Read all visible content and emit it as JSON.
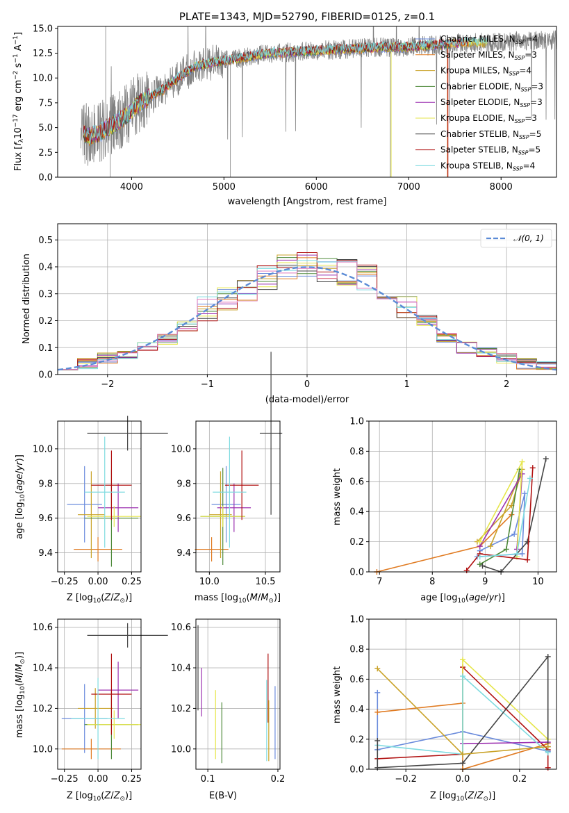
{
  "chart_data": [
    {
      "id": "spectrum",
      "type": "line",
      "title": "PLATE=1343, MJD=52790, FIBERID=0125, z=0.1",
      "xlabel": "wavelength [Angstrom, rest frame]",
      "ylabel": "Flux [f_λ 10^-17 erg cm^-2 s^-1 A^-1]",
      "ylabel_parts": {
        "a": "Flux [",
        "b": "f",
        "c": "λ",
        "d": "10",
        "e": "−17",
        "f": " erg cm",
        "g": "−2",
        "h": " s",
        "i": "−1",
        "j": " A",
        "k": "−1",
        "l": "]"
      },
      "xlim": [
        3200,
        8600
      ],
      "ylim": [
        0,
        15.2
      ],
      "xticks": [
        "4000",
        "5000",
        "6000",
        "7000",
        "8000"
      ],
      "yticks": [
        "0.0",
        "2.5",
        "5.0",
        "7.5",
        "10.0",
        "12.5",
        "15.0"
      ],
      "legend_position": "right",
      "series": [
        {
          "name": "Chabrier MILES, N_SSP=4",
          "color": "#6a8bdc"
        },
        {
          "name": "Salpeter MILES, N_SSP=3",
          "color": "#e07b22"
        },
        {
          "name": "Kroupa MILES, N_SSP=4",
          "color": "#c9a227"
        },
        {
          "name": "Chabrier ELODIE, N_SSP=3",
          "color": "#4e8a3a"
        },
        {
          "name": "Salpeter ELODIE, N_SSP=3",
          "color": "#9b30b0"
        },
        {
          "name": "Kroupa ELODIE, N_SSP=3",
          "color": "#e6e64a"
        },
        {
          "name": "Chabrier STELIB, N_SSP=5",
          "color": "#444444"
        },
        {
          "name": "Salpeter STELIB, N_SSP=5",
          "color": "#b01010"
        },
        {
          "name": "Kroupa STELIB, N_SSP=4",
          "color": "#7fdbe0"
        }
      ],
      "legend_labels": [
        {
          "base": "Chabrier MILES, N",
          "sub": "SSP",
          "tail": "=4"
        },
        {
          "base": "Salpeter MILES, N",
          "sub": "SSP",
          "tail": "=3"
        },
        {
          "base": "Kroupa MILES, N",
          "sub": "SSP",
          "tail": "=4"
        },
        {
          "base": "Chabrier ELODIE, N",
          "sub": "SSP",
          "tail": "=3"
        },
        {
          "base": "Salpeter ELODIE, N",
          "sub": "SSP",
          "tail": "=3"
        },
        {
          "base": "Kroupa ELODIE, N",
          "sub": "SSP",
          "tail": "=3"
        },
        {
          "base": "Chabrier STELIB, N",
          "sub": "SSP",
          "tail": "=5"
        },
        {
          "base": "Salpeter STELIB, N",
          "sub": "SSP",
          "tail": "=5"
        },
        {
          "base": "Kroupa STELIB, N",
          "sub": "SSP",
          "tail": "=4"
        }
      ],
      "data_color": "#808080",
      "continuum": {
        "x": [
          3480,
          3550,
          3650,
          3750,
          3850,
          3950,
          4050,
          4150,
          4250,
          4350,
          4500,
          4700,
          4900,
          5100,
          5300,
          5500,
          5700,
          5900,
          6100,
          6300,
          6500,
          6700,
          6900,
          7100,
          7300,
          7500
        ],
        "y": [
          4.5,
          4.1,
          4.4,
          5.0,
          5.6,
          6.2,
          7.2,
          7.9,
          8.3,
          8.9,
          10.0,
          11.2,
          11.6,
          11.9,
          12.2,
          12.5,
          12.6,
          12.7,
          12.8,
          12.9,
          13.0,
          13.1,
          13.1,
          13.2,
          13.3,
          13.5
        ]
      },
      "data_xrange": [
        3450,
        8600
      ]
    },
    {
      "id": "residuals",
      "type": "line",
      "xlabel": "(data-model)/error",
      "ylabel": "Normed distribution",
      "xlim": [
        -2.5,
        2.5
      ],
      "ylim": [
        0,
        0.56
      ],
      "xticks": [
        "−2",
        "−1",
        "0",
        "1",
        "2"
      ],
      "yticks": [
        "0.0",
        "0.1",
        "0.2",
        "0.3",
        "0.4",
        "0.5"
      ],
      "legend": "𝒩(0, 1)",
      "gaussian_color": "#5b8bd6",
      "hist_bins": [
        -2.5,
        -2.3,
        -2.1,
        -1.9,
        -1.7,
        -1.5,
        -1.3,
        -1.1,
        -0.9,
        -0.7,
        -0.5,
        -0.3,
        -0.1,
        0.1,
        0.3,
        0.5,
        0.7,
        0.9,
        1.1,
        1.3,
        1.5,
        1.7,
        1.9,
        2.1,
        2.3,
        2.5
      ],
      "hist_base": [
        0.02,
        0.04,
        0.06,
        0.08,
        0.1,
        0.13,
        0.18,
        0.24,
        0.28,
        0.32,
        0.36,
        0.4,
        0.41,
        0.39,
        0.38,
        0.36,
        0.31,
        0.25,
        0.2,
        0.14,
        0.1,
        0.08,
        0.06,
        0.04,
        0.03
      ]
    },
    {
      "id": "age_vs_Z",
      "type": "scatter",
      "xlabel": "Z [log10(Z/Z☉)]",
      "ylabel": "age [log10(age/yr)]",
      "xlim": [
        -0.3,
        0.32
      ],
      "ylim": [
        9.29,
        10.16
      ],
      "xticks": [
        "−0.25",
        "0.00",
        "0.25"
      ],
      "yticks": [
        "9.4",
        "9.6",
        "9.8",
        "10.0"
      ],
      "points": [
        {
          "series": 0,
          "x": -0.1,
          "y": 9.68,
          "xerr": 0.13,
          "yerr": 0.22
        },
        {
          "series": 1,
          "x": 0.0,
          "y": 9.42,
          "xerr": 0.18,
          "yerr": 0.07
        },
        {
          "series": 2,
          "x": -0.05,
          "y": 9.62,
          "xerr": 0.1,
          "yerr": 0.25
        },
        {
          "series": 3,
          "x": 0.1,
          "y": 9.6,
          "xerr": 0.2,
          "yerr": 0.28
        },
        {
          "series": 4,
          "x": 0.15,
          "y": 9.66,
          "xerr": 0.15,
          "yerr": 0.14
        },
        {
          "series": 5,
          "x": 0.12,
          "y": 9.61,
          "xerr": 0.2,
          "yerr": 0.06
        },
        {
          "series": 6,
          "x": 0.22,
          "y": 10.09,
          "xerr": 0.3,
          "yerr": 0.1
        },
        {
          "series": 7,
          "x": 0.1,
          "y": 9.79,
          "xerr": 0.15,
          "yerr": 0.2
        },
        {
          "series": 8,
          "x": 0.05,
          "y": 9.75,
          "xerr": 0.15,
          "yerr": 0.32
        }
      ]
    },
    {
      "id": "age_vs_mass",
      "type": "scatter",
      "xlabel": "mass [log10(M/M☉)]",
      "ylabel": "",
      "xlim": [
        9.88,
        10.63
      ],
      "ylim": [
        9.29,
        10.16
      ],
      "xticks": [
        "10.0",
        "10.5"
      ],
      "yticks": [
        "9.4",
        "9.6",
        "9.8",
        "10.0"
      ],
      "points": [
        {
          "series": 0,
          "x": 10.15,
          "y": 9.68,
          "xerr": 0.13,
          "yerr": 0.22
        },
        {
          "series": 1,
          "x": 10.02,
          "y": 9.42,
          "xerr": 0.15,
          "yerr": 0.07
        },
        {
          "series": 2,
          "x": 10.1,
          "y": 9.62,
          "xerr": 0.1,
          "yerr": 0.25
        },
        {
          "series": 3,
          "x": 10.12,
          "y": 9.61,
          "xerr": 0.2,
          "yerr": 0.28
        },
        {
          "series": 4,
          "x": 10.22,
          "y": 9.66,
          "xerr": 0.15,
          "yerr": 0.14
        },
        {
          "series": 5,
          "x": 10.12,
          "y": 9.61,
          "xerr": 0.2,
          "yerr": 0.06
        },
        {
          "series": 6,
          "x": 10.55,
          "y": 10.09,
          "xerr": 0.1,
          "yerr": 0.47
        },
        {
          "series": 7,
          "x": 10.29,
          "y": 9.79,
          "xerr": 0.15,
          "yerr": 0.2
        },
        {
          "series": 8,
          "x": 10.18,
          "y": 9.75,
          "xerr": 0.15,
          "yerr": 0.32
        }
      ]
    },
    {
      "id": "weight_vs_age",
      "type": "line",
      "xlabel": "age [log10(age/yr)]",
      "ylabel": "mass weight",
      "xlim": [
        6.8,
        10.35
      ],
      "ylim": [
        0,
        1
      ],
      "xticks": [
        "7",
        "8",
        "9",
        "10"
      ],
      "yticks": [
        "0.0",
        "0.2",
        "0.4",
        "0.6",
        "0.8",
        "1.0"
      ],
      "series": [
        {
          "series": 0,
          "x": [
            8.85,
            9.7,
            9.75,
            9.55,
            8.9
          ],
          "y": [
            0.1,
            0.12,
            0.52,
            0.25,
            0.14
          ]
        },
        {
          "series": 1,
          "x": [
            6.95,
            8.9,
            9.5
          ],
          "y": [
            0.0,
            0.17,
            0.38
          ]
        },
        {
          "series": 2,
          "x": [
            8.85,
            9.5,
            9.7,
            9.1
          ],
          "y": [
            0.2,
            0.44,
            0.68,
            0.17
          ]
        },
        {
          "series": 3,
          "x": [
            8.9,
            9.4,
            9.65
          ],
          "y": [
            0.05,
            0.15,
            0.68
          ]
        },
        {
          "series": 4,
          "x": [
            8.9,
            9.7,
            9.6
          ],
          "y": [
            0.17,
            0.65,
            0.15
          ]
        },
        {
          "series": 5,
          "x": [
            8.9,
            9.7,
            9.6
          ],
          "y": [
            0.2,
            0.73,
            0.1
          ]
        },
        {
          "series": 6,
          "x": [
            8.95,
            9.3,
            9.8,
            10.15
          ],
          "y": [
            0.04,
            0.0,
            0.2,
            0.75
          ]
        },
        {
          "series": 7,
          "x": [
            8.65,
            8.9,
            9.8,
            9.9
          ],
          "y": [
            0.01,
            0.12,
            0.08,
            0.69
          ]
        },
        {
          "series": 8,
          "x": [
            8.9,
            9.6,
            9.85
          ],
          "y": [
            0.1,
            0.12,
            0.62
          ]
        }
      ]
    },
    {
      "id": "mass_vs_Z",
      "type": "scatter",
      "xlabel": "Z [log10(Z/Z☉)]",
      "ylabel": "mass [log10(M/M☉)]",
      "xlim": [
        -0.3,
        0.32
      ],
      "ylim": [
        9.9,
        10.64
      ],
      "xticks": [
        "−0.25",
        "0.00",
        "0.25"
      ],
      "yticks": [
        "10.0",
        "10.2",
        "10.4",
        "10.6"
      ],
      "points": [
        {
          "series": 0,
          "x": -0.1,
          "y": 10.15,
          "xerr": 0.17,
          "yerr": 0.17
        },
        {
          "series": 1,
          "x": -0.05,
          "y": 10.0,
          "xerr": 0.22,
          "yerr": 0.05
        },
        {
          "series": 2,
          "x": -0.02,
          "y": 10.2,
          "xerr": 0.13,
          "yerr": 0.1
        },
        {
          "series": 3,
          "x": 0.1,
          "y": 10.12,
          "xerr": 0.2,
          "yerr": 0.17
        },
        {
          "series": 4,
          "x": 0.15,
          "y": 10.29,
          "xerr": 0.15,
          "yerr": 0.14
        },
        {
          "series": 5,
          "x": 0.12,
          "y": 10.12,
          "xerr": 0.2,
          "yerr": 0.07
        },
        {
          "series": 6,
          "x": 0.22,
          "y": 10.56,
          "xerr": 0.3,
          "yerr": 0.06
        },
        {
          "series": 7,
          "x": 0.1,
          "y": 10.27,
          "xerr": 0.15,
          "yerr": 0.2
        },
        {
          "series": 8,
          "x": 0.0,
          "y": 10.15,
          "xerr": 0.2,
          "yerr": 0.2
        }
      ]
    },
    {
      "id": "mass_vs_ebv",
      "type": "scatter",
      "xlabel": "E(B-V)",
      "ylabel": "",
      "xlim": [
        0.083,
        0.203
      ],
      "ylim": [
        9.9,
        10.64
      ],
      "xticks": [
        "0.1",
        "0.2"
      ],
      "yticks": [
        "10.0",
        "10.2",
        "10.4",
        "10.6"
      ],
      "points": [
        {
          "series": 6,
          "x": 0.086,
          "y": 10.4,
          "yerr": 0.21
        },
        {
          "series": 4,
          "x": 0.091,
          "y": 10.28,
          "yerr": 0.12
        },
        {
          "series": 5,
          "x": 0.111,
          "y": 10.12,
          "yerr": 0.17
        },
        {
          "series": 3,
          "x": 0.12,
          "y": 10.08,
          "yerr": 0.15
        },
        {
          "series": 8,
          "x": 0.184,
          "y": 10.14,
          "yerr": 0.2
        },
        {
          "series": 7,
          "x": 0.186,
          "y": 10.3,
          "yerr": 0.17
        },
        {
          "series": 2,
          "x": 0.187,
          "y": 10.09,
          "yerr": 0.15
        },
        {
          "series": 0,
          "x": 0.196,
          "y": 10.13,
          "yerr": 0.18
        }
      ]
    },
    {
      "id": "weight_vs_Z",
      "type": "line",
      "xlabel": "Z [log10(Z/Z☉)]",
      "ylabel": "mass weight",
      "xlim": [
        -0.33,
        0.33
      ],
      "ylim": [
        0,
        1
      ],
      "xticks": [
        "−0.2",
        "0.0",
        "0.2"
      ],
      "yticks": [
        "0.0",
        "0.2",
        "0.4",
        "0.6",
        "0.8",
        "1.0"
      ],
      "series": [
        {
          "series": 0,
          "x": [
            -0.3,
            -0.3,
            -0.3,
            0.0,
            0.3,
            0.3
          ],
          "y": [
            0.51,
            0.13,
            0.13,
            0.25,
            0.12,
            0.12
          ]
        },
        {
          "series": 1,
          "x": [
            -0.3,
            0.0,
            0.0,
            0.3
          ],
          "y": [
            0.38,
            0.44,
            0.0,
            0.17
          ]
        },
        {
          "series": 7,
          "x": [
            -0.3,
            0.0,
            0.0,
            0.3,
            0.3
          ],
          "y": [
            0.07,
            0.1,
            0.68,
            0.13,
            0.01
          ]
        },
        {
          "series": 4,
          "x": [
            0.0,
            0.0,
            0.3
          ],
          "y": [
            0.17,
            0.17,
            0.18
          ]
        },
        {
          "series": 5,
          "x": [
            0.0,
            0.0,
            0.3
          ],
          "y": [
            0.1,
            0.73,
            0.2
          ]
        },
        {
          "series": 8,
          "x": [
            -0.3,
            0.0,
            0.0,
            0.3
          ],
          "y": [
            0.16,
            0.1,
            0.62,
            0.11
          ]
        },
        {
          "series": 6,
          "x": [
            -0.3,
            -0.3,
            0.0,
            0.3,
            0.3
          ],
          "y": [
            0.19,
            0.01,
            0.04,
            0.75,
            0.15
          ]
        },
        {
          "series": 2,
          "x": [
            -0.3,
            0.0,
            0.3
          ],
          "y": [
            0.67,
            0.1,
            0.15
          ]
        }
      ]
    }
  ]
}
